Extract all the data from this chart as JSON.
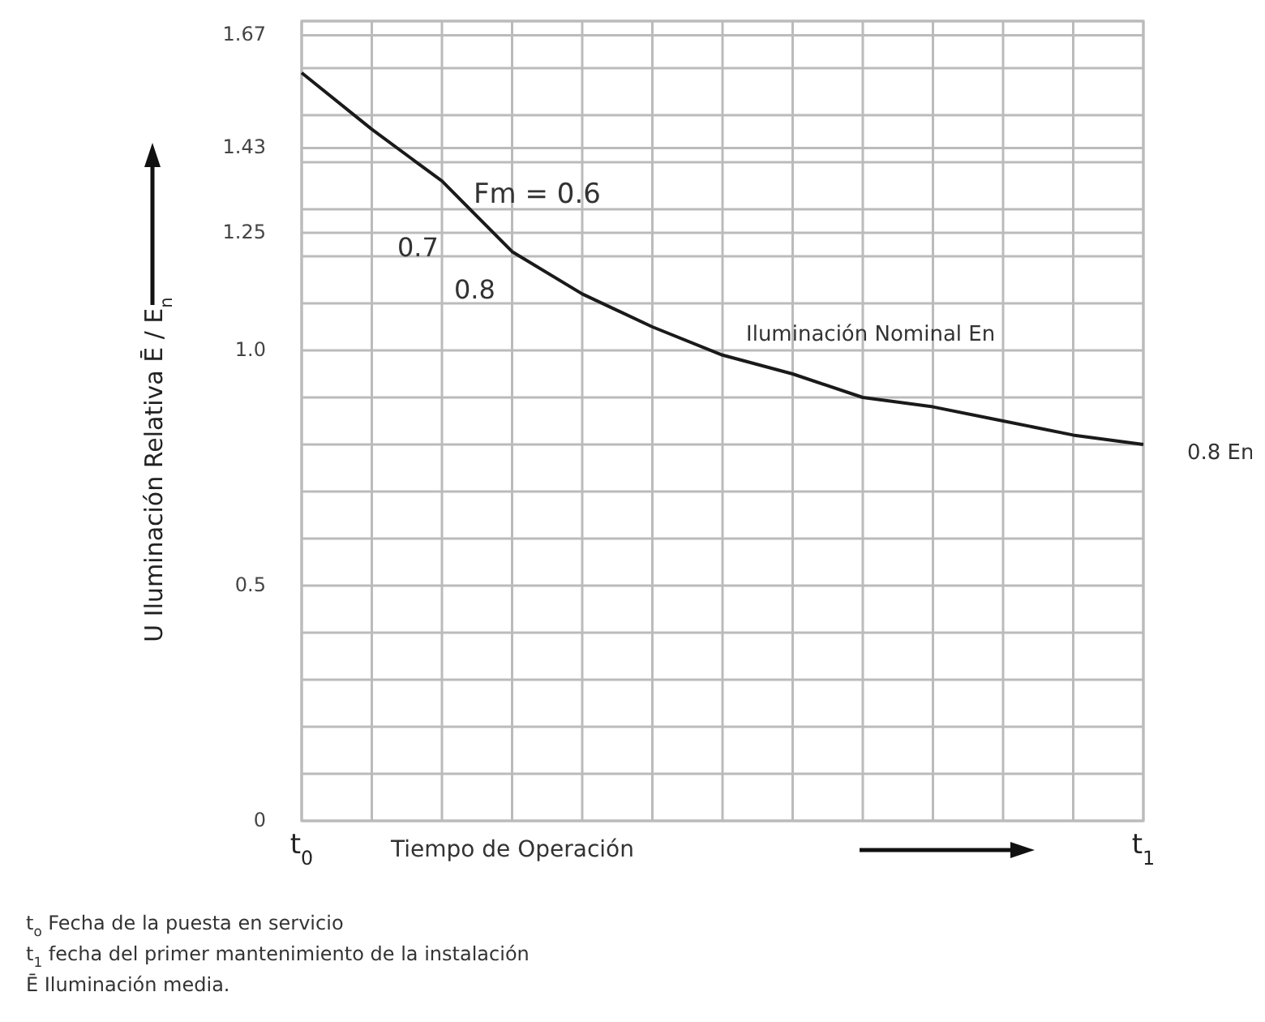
{
  "chart_data": {
    "type": "line",
    "categories": [
      "t$_{0}$",
      null,
      null,
      null,
      null,
      null,
      null,
      null,
      null,
      null,
      null,
      null,
      "t$_{1}$"
    ],
    "values": [
      1.59,
      1.47,
      1.36,
      1.21,
      1.12,
      1.05,
      0.99,
      0.95,
      0.9,
      0.88,
      0.85,
      0.82,
      0.8
    ],
    "color": "#1a1a1a",
    "ylim": [
      0,
      1.7
    ],
    "yticks": [
      0,
      {
        "value": 0.1,
        "label": null
      },
      {
        "value": 0.2,
        "label": null
      },
      {
        "value": 0.3,
        "label": null
      },
      {
        "value": 0.4,
        "label": null
      },
      0.5,
      {
        "value": 0.6,
        "label": null
      },
      {
        "value": 0.7,
        "label": null
      },
      {
        "value": 0.8,
        "label": null
      },
      {
        "value": 0.9,
        "label": null
      },
      {
        "value": 1,
        "label": "1.0"
      },
      {
        "value": 1.1,
        "label": null
      },
      {
        "value": 1.2,
        "label": null
      },
      1.25,
      {
        "value": 1.3,
        "label": null
      },
      {
        "value": 1.4,
        "label": null
      },
      1.43,
      {
        "value": 1.5,
        "label": null
      },
      {
        "value": 1.6,
        "label": null
      },
      1.67,
      {
        "value": 1.7,
        "label": null
      }
    ],
    "grid": true,
    "marker": "none",
    "line_style": "solid",
    "xlabel": "Tiempo de Operación",
    "ylabel": "U Iluminación Relativa Ē / E$_{n}$",
    "annotations": [
      "Fm = 0.6",
      "0.7",
      "0.8",
      "Iluminación Nominal En",
      "0.8 En",
      "t$_{o}$   Fecha de la puesta en servicio",
      "t$_{1}$   fecha del primer mantenimiento de la instalación",
      "Ē   Iluminación media."
    ]
  }
}
